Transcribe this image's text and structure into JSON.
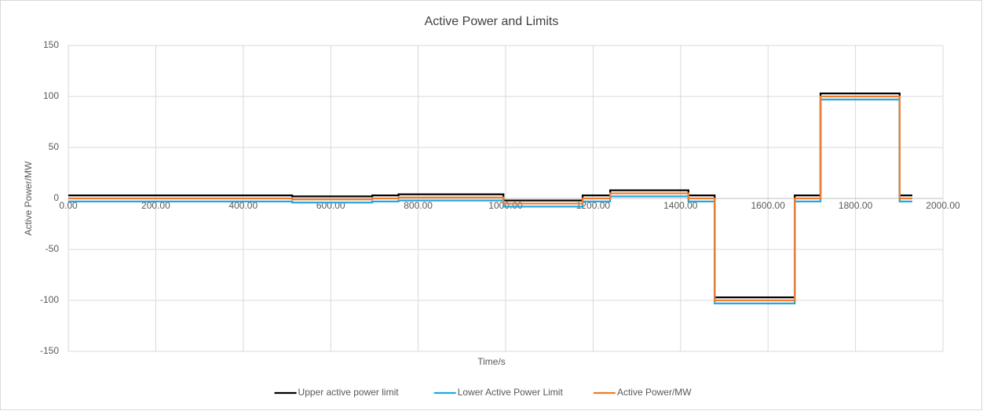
{
  "chart_data": {
    "type": "line",
    "title": "Active Power and Limits",
    "x_label": "Time/s",
    "y_label": "Active Power/MW",
    "x": [
      0,
      512,
      512,
      695,
      695,
      755,
      755,
      995,
      995,
      1176,
      1176,
      1239,
      1239,
      1418,
      1418,
      1478,
      1478,
      1661,
      1661,
      1720,
      1720,
      1901,
      1901,
      1930
    ],
    "series": [
      {
        "name": "Upper active power limit",
        "color": "#000000",
        "values": [
          3,
          3,
          2,
          2,
          3,
          3,
          4,
          4,
          -2,
          -2,
          3,
          3,
          8,
          8,
          3,
          3,
          -97,
          -97,
          3,
          3,
          103,
          103,
          3,
          3
        ]
      },
      {
        "name": "Lower Active Power Limit",
        "color": "#22a7e0",
        "values": [
          -3,
          -3,
          -4,
          -4,
          -3,
          -3,
          -2,
          -2,
          -8,
          -8,
          -3,
          -3,
          2,
          2,
          -3,
          -3,
          -103,
          -103,
          -3,
          -3,
          97,
          97,
          -3,
          -3
        ]
      },
      {
        "name": "Active Power/MW",
        "color": "#ed7d31",
        "values": [
          0,
          0,
          -1,
          -1,
          0,
          0,
          1,
          1,
          -5,
          -5,
          0,
          0,
          5,
          5,
          0,
          0,
          -100,
          -100,
          0,
          0,
          100,
          100,
          0,
          0
        ]
      }
    ],
    "xlim": [
      0,
      2000
    ],
    "xticks": [
      {
        "value": 0,
        "label": "0.00"
      },
      {
        "value": 200,
        "label": "200.00"
      },
      {
        "value": 400,
        "label": "400.00"
      },
      {
        "value": 600,
        "label": "600.00"
      },
      {
        "value": 800,
        "label": "800.00"
      },
      {
        "value": 1000,
        "label": "1000.00"
      },
      {
        "value": 1200,
        "label": "1200.00"
      },
      {
        "value": 1400,
        "label": "1400.00"
      },
      {
        "value": 1600,
        "label": "1600.00"
      },
      {
        "value": 1800,
        "label": "1800.00"
      },
      {
        "value": 2000,
        "label": "2000.00"
      }
    ],
    "ylim": [
      -150,
      150
    ],
    "yticks": [
      150,
      100,
      50,
      0,
      -50,
      -100,
      -150
    ],
    "grid": true,
    "legend": "bottom"
  }
}
